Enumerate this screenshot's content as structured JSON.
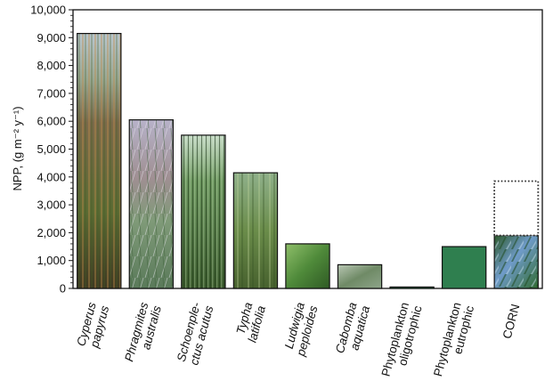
{
  "chart_data": {
    "type": "bar",
    "ylabel": "NPP, (g m⁻² y⁻¹)",
    "ylim": [
      0,
      10000
    ],
    "yticks": [
      "0",
      "1,000",
      "2,000",
      "3,000",
      "4,000",
      "5,000",
      "6,000",
      "7,000",
      "8,000",
      "9,000",
      "10,000"
    ],
    "grid": false,
    "categories": [
      {
        "lines": [
          "Cyperus",
          "papyrus"
        ],
        "italic": true
      },
      {
        "lines": [
          "Phragmites",
          "australis"
        ],
        "italic": true
      },
      {
        "lines": [
          "Schoenple-",
          "ctus acutus"
        ],
        "italic": true
      },
      {
        "lines": [
          "Typha",
          "latifolia"
        ],
        "italic": true
      },
      {
        "lines": [
          "Ludwigia",
          "peploides"
        ],
        "italic": true
      },
      {
        "lines": [
          "Cabomba",
          "aquatica"
        ],
        "italic": true
      },
      {
        "lines": [
          "Phytoplankton",
          "oligotrophic"
        ],
        "italic": false
      },
      {
        "lines": [
          "Phytoplankton",
          "eutrophic"
        ],
        "italic": false
      },
      {
        "lines": [
          "CORN"
        ],
        "italic": false
      }
    ],
    "values": [
      9150,
      6050,
      5500,
      4150,
      1600,
      850,
      50,
      1500,
      1900
    ],
    "extra": [
      {
        "category_index": 8,
        "upper_value": 3850,
        "style": "dotted-outline"
      }
    ],
    "fills": [
      "photo-papyrus",
      "photo-reed",
      "photo-rush",
      "photo-cattail",
      "photo-leaf",
      "photo-aquatic",
      "solid",
      "solid",
      "photo-corn"
    ],
    "solid_color": "#2f7f4f",
    "dotted_color": "#2a2a2a"
  }
}
